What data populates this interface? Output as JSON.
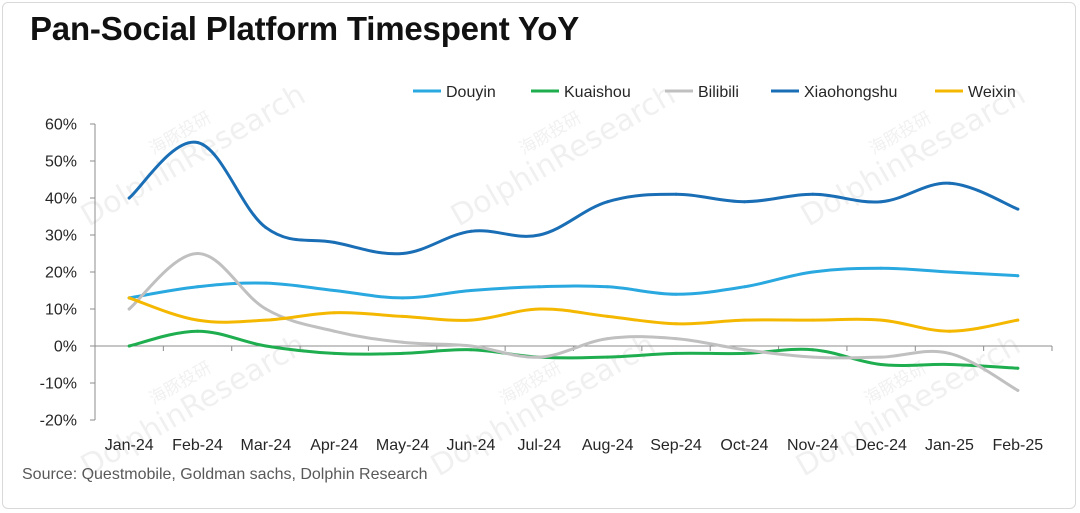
{
  "title": "Pan-Social Platform Timespent YoY",
  "source": "Source:  Questmobile, Goldman sachs, Dolphin Research",
  "watermark": {
    "cn": "海豚投研",
    "en": "DolphinResearch"
  },
  "chart_data": {
    "type": "line",
    "categories": [
      "Jan-24",
      "Feb-24",
      "Mar-24",
      "Apr-24",
      "May-24",
      "Jun-24",
      "Jul-24",
      "Aug-24",
      "Sep-24",
      "Oct-24",
      "Nov-24",
      "Dec-24",
      "Jan-25",
      "Feb-25"
    ],
    "y_ticks": [
      "60%",
      "50%",
      "40%",
      "30%",
      "20%",
      "10%",
      "0%",
      "-10%",
      "-20%"
    ],
    "ylim": [
      -20,
      60
    ],
    "y_step": 10,
    "legend_position": "top-right",
    "grid": false,
    "series": [
      {
        "name": "Douyin",
        "color": "#2aa8e0",
        "values": [
          13,
          16,
          17,
          15,
          13,
          15,
          16,
          16,
          14,
          16,
          20,
          21,
          20,
          19
        ]
      },
      {
        "name": "Kuaishou",
        "color": "#1fae4f",
        "values": [
          0,
          4,
          0,
          -2,
          -2,
          -1,
          -3,
          -3,
          -2,
          -2,
          -1,
          -5,
          -5,
          -6
        ]
      },
      {
        "name": "Bilibili",
        "color": "#c0c0c0",
        "values": [
          10,
          25,
          10,
          4,
          1,
          0,
          -3,
          2,
          2,
          -1,
          -3,
          -3,
          -2,
          -12
        ]
      },
      {
        "name": "Xiaohongshu",
        "color": "#1a6eb5",
        "values": [
          40,
          55,
          32,
          28,
          25,
          31,
          30,
          39,
          41,
          39,
          41,
          39,
          44,
          37
        ]
      },
      {
        "name": "Weixin",
        "color": "#f5b800",
        "values": [
          13,
          7,
          7,
          9,
          8,
          7,
          10,
          8,
          6,
          7,
          7,
          7,
          4,
          7
        ]
      }
    ]
  }
}
